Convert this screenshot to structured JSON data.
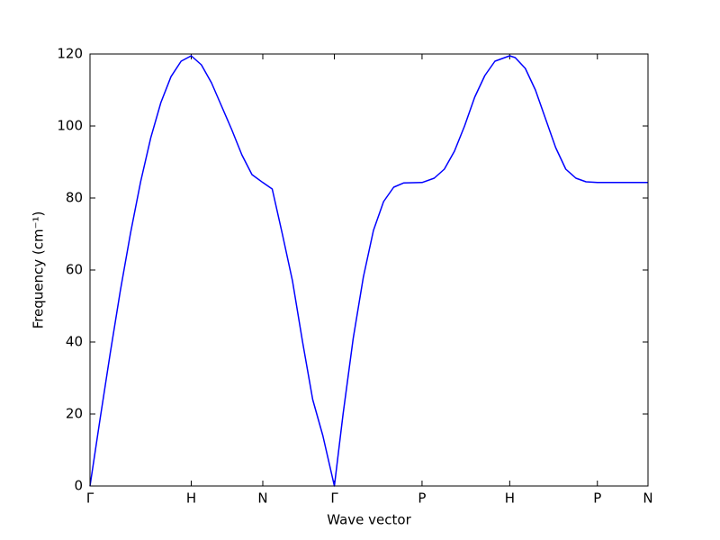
{
  "chart_data": {
    "type": "line",
    "xlabel": "Wave vector",
    "ylabel": "Frequency (cm⁻¹)",
    "x": [
      0,
      0.1,
      0.2,
      0.3,
      0.4,
      0.5,
      0.6,
      0.7,
      0.8,
      0.9,
      1.0,
      1.1,
      1.2,
      1.3,
      1.4,
      1.5,
      1.6,
      1.707,
      1.8,
      1.9,
      2.0,
      2.1,
      2.2,
      2.3,
      2.414,
      2.5,
      2.6,
      2.7,
      2.8,
      2.9,
      3.0,
      3.1,
      3.28,
      3.4,
      3.5,
      3.6,
      3.7,
      3.8,
      3.9,
      4.0,
      4.146,
      4.2,
      4.3,
      4.4,
      4.5,
      4.6,
      4.7,
      4.8,
      4.9,
      5.012,
      5.512
    ],
    "series": [
      {
        "name": "branch",
        "color": "#0000ff",
        "values": [
          0,
          18.7,
          36.9,
          54.3,
          70.2,
          84.5,
          96.7,
          106.5,
          113.7,
          118.0,
          119.5,
          117,
          112,
          105.5,
          99,
          92,
          86.5,
          84.3,
          82.5,
          70,
          57,
          40,
          24,
          14,
          0,
          20,
          41,
          58,
          71,
          79,
          83,
          84.2,
          84.3,
          85.5,
          88,
          93,
          100,
          108,
          114,
          118,
          119.5,
          119,
          116,
          110,
          102,
          94,
          88,
          85.5,
          84.5,
          84.3,
          84.3
        ]
      }
    ],
    "xlim": [
      0,
      5.512
    ],
    "ylim": [
      0,
      120
    ],
    "xticks": [
      {
        "value": 0,
        "label": "Γ"
      },
      {
        "value": 1.0,
        "label": "H"
      },
      {
        "value": 1.707,
        "label": "N"
      },
      {
        "value": 2.414,
        "label": "Γ"
      },
      {
        "value": 3.28,
        "label": "P"
      },
      {
        "value": 4.146,
        "label": "H"
      },
      {
        "value": 5.012,
        "label": "P"
      },
      {
        "value": 5.512,
        "label": "N"
      }
    ],
    "yticks": [
      0,
      20,
      40,
      60,
      80,
      100,
      120
    ]
  }
}
